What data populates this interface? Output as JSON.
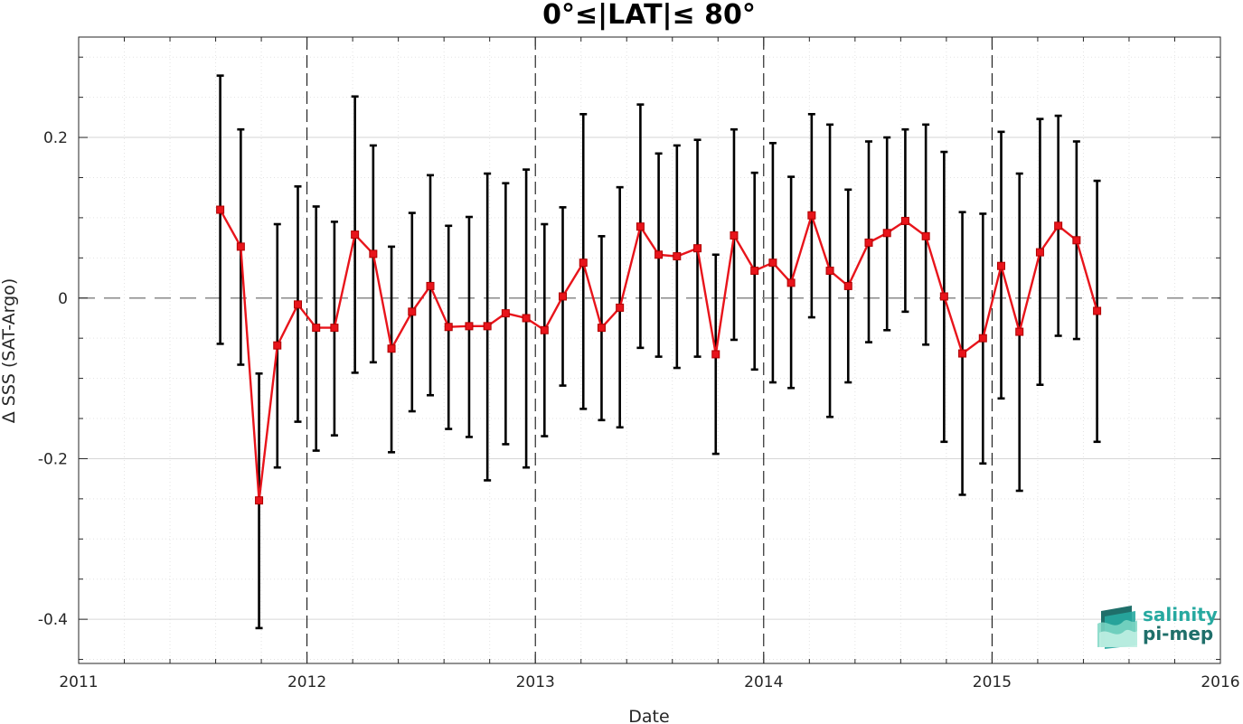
{
  "chart_data": {
    "type": "line",
    "title": "0°≤|LAT|≤ 80°",
    "xlabel": "Date",
    "ylabel": "Δ SSS (SAT-Argo)",
    "xlim": [
      2011,
      2016
    ],
    "ylim": [
      -0.455,
      0.325
    ],
    "x_ticks": [
      "2011",
      "2012",
      "2013",
      "2014",
      "2015",
      "2016"
    ],
    "y_ticks": [
      "-0.4",
      "-0.2",
      "0",
      "0.2"
    ],
    "grid": true,
    "minor_grid": true,
    "zero_line": "dashed",
    "year_lines": "dashed",
    "colors": {
      "series": "#e8141b",
      "errorbar": "#000000",
      "grid": "#dcdcdc"
    },
    "series": [
      {
        "marker": "square",
        "x": [
          2011.62,
          2011.71,
          2011.79,
          2011.87,
          2011.96,
          2012.04,
          2012.12,
          2012.21,
          2012.29,
          2012.37,
          2012.46,
          2012.54,
          2012.62,
          2012.71,
          2012.79,
          2012.87,
          2012.96,
          2013.04,
          2013.12,
          2013.21,
          2013.29,
          2013.37,
          2013.46,
          2013.54,
          2013.62,
          2013.71,
          2013.79,
          2013.87,
          2013.96,
          2014.04,
          2014.12,
          2014.21,
          2014.29,
          2014.37,
          2014.46,
          2014.54,
          2014.62,
          2014.71,
          2014.79,
          2014.87,
          2014.96,
          2015.04,
          2015.12,
          2015.21,
          2015.29,
          2015.37,
          2015.46
        ],
        "y": [
          0.11,
          0.064,
          -0.252,
          -0.059,
          -0.008,
          -0.037,
          -0.037,
          0.079,
          0.055,
          -0.063,
          -0.017,
          0.015,
          -0.036,
          -0.035,
          -0.035,
          -0.019,
          -0.025,
          -0.04,
          0.002,
          0.044,
          -0.037,
          -0.012,
          0.089,
          0.054,
          0.052,
          0.062,
          -0.07,
          0.078,
          0.034,
          0.044,
          0.019,
          0.103,
          0.034,
          0.015,
          0.069,
          0.081,
          0.096,
          0.077,
          0.002,
          -0.069,
          -0.05,
          0.04,
          -0.042,
          0.057,
          0.09,
          0.072,
          -0.016
        ],
        "err_low": [
          -0.057,
          -0.083,
          -0.411,
          -0.211,
          -0.154,
          -0.19,
          -0.171,
          -0.093,
          -0.08,
          -0.192,
          -0.141,
          -0.121,
          -0.163,
          -0.173,
          -0.227,
          -0.182,
          -0.211,
          -0.172,
          -0.109,
          -0.138,
          -0.152,
          -0.161,
          -0.062,
          -0.073,
          -0.087,
          -0.073,
          -0.194,
          -0.052,
          -0.089,
          -0.105,
          -0.112,
          -0.024,
          -0.148,
          -0.105,
          -0.055,
          -0.04,
          -0.017,
          -0.058,
          -0.179,
          -0.245,
          -0.206,
          -0.125,
          -0.24,
          -0.108,
          -0.047,
          -0.051,
          -0.179
        ],
        "err_high": [
          0.277,
          0.21,
          -0.094,
          0.092,
          0.139,
          0.114,
          0.095,
          0.251,
          0.19,
          0.064,
          0.106,
          0.153,
          0.09,
          0.101,
          0.155,
          0.143,
          0.16,
          0.092,
          0.113,
          0.229,
          0.077,
          0.138,
          0.241,
          0.18,
          0.19,
          0.197,
          0.054,
          0.21,
          0.156,
          0.193,
          0.151,
          0.229,
          0.216,
          0.135,
          0.195,
          0.2,
          0.21,
          0.216,
          0.182,
          0.107,
          0.105,
          0.207,
          0.155,
          0.223,
          0.227,
          0.195,
          0.146
        ]
      }
    ]
  },
  "logo": {
    "line1": "salinity",
    "line2": "pi-mep",
    "colors": [
      "#27a9a0",
      "#1f6f6a",
      "#7ed7c4"
    ]
  }
}
